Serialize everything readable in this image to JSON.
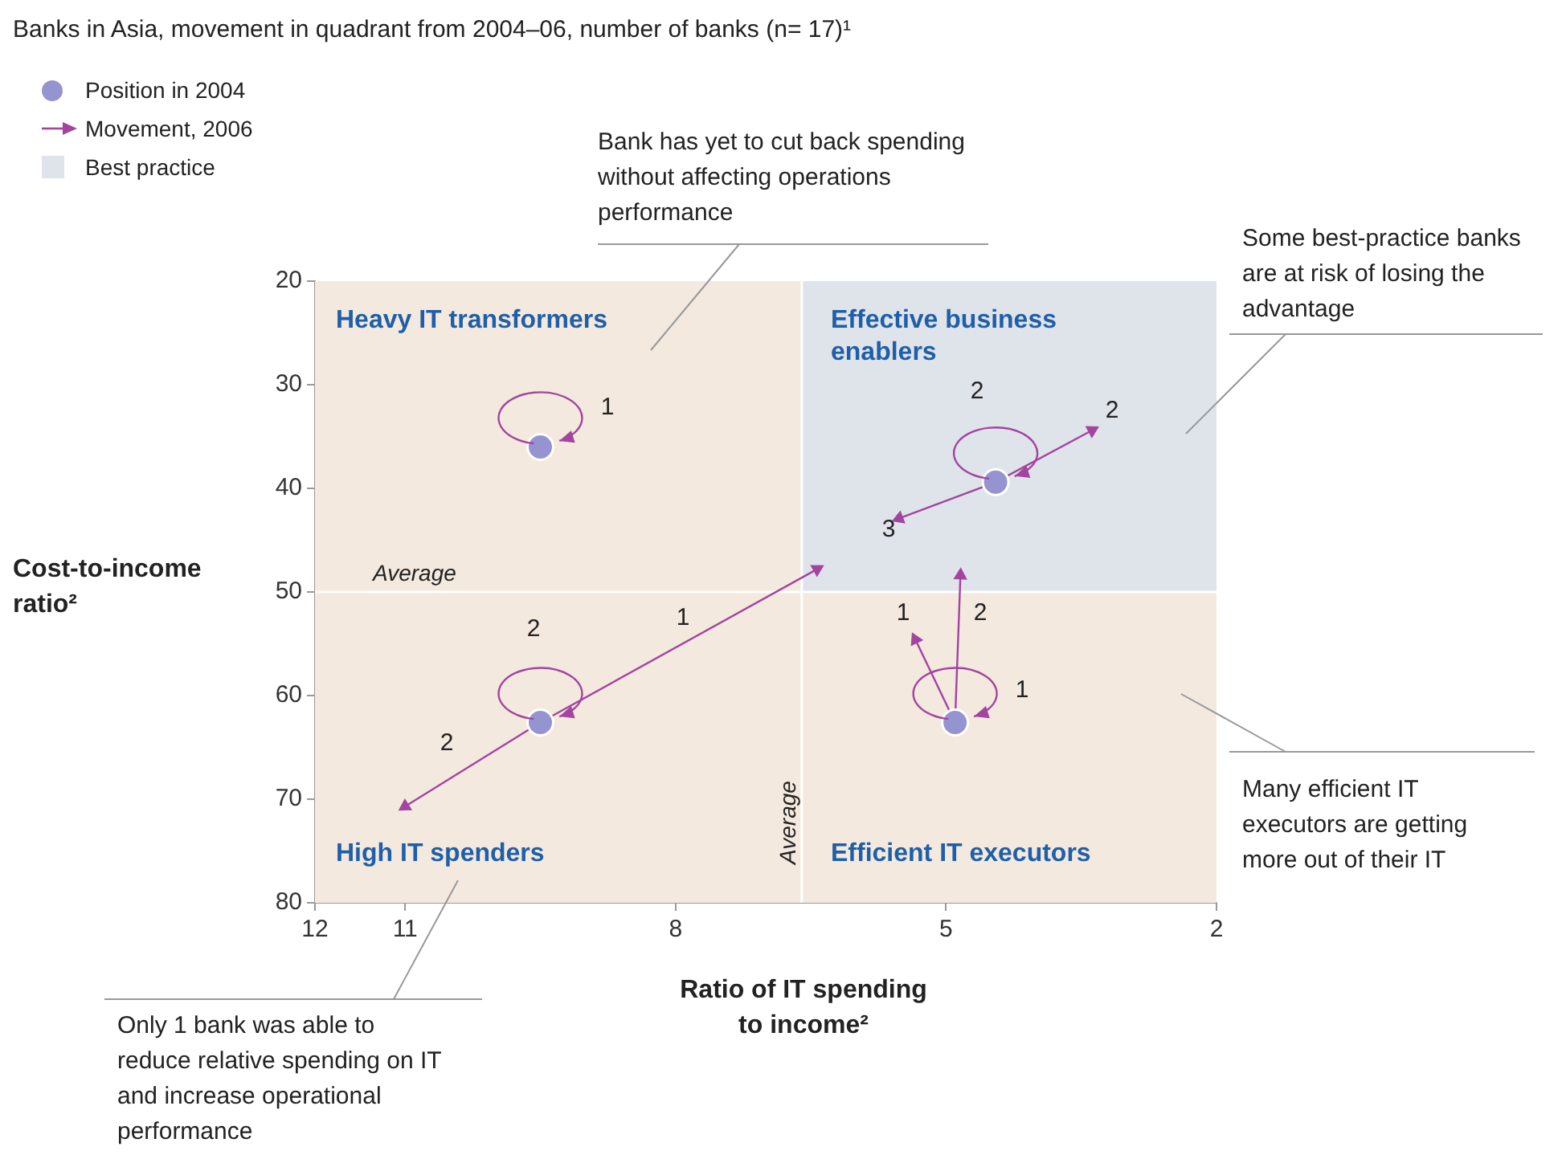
{
  "chart_data": {
    "type": "scatter",
    "title": "Banks in Asia, movement in quadrant from 2004–06, number of banks (n= 17)¹",
    "xlabel": "Ratio of IT spending to income²",
    "ylabel": "Cost-to-income ratio²",
    "xlim": [
      12,
      2
    ],
    "xticks": [
      12,
      11,
      8,
      5,
      2
    ],
    "ylim": [
      80,
      20
    ],
    "yticks": [
      20,
      30,
      40,
      50,
      60,
      70,
      80
    ],
    "grid": false,
    "legend": "top left",
    "series": [
      {
        "name": "Position in 2004",
        "type": "scatter",
        "marker": "circle",
        "color": "#9594d1",
        "x": [
          9.5,
          9.5,
          4.45,
          4.9
        ],
        "values": [
          36,
          62.6,
          39.4,
          62.6
        ]
      },
      {
        "name": "Movement, 2006",
        "type": "line",
        "marker": "triangle",
        "color": "#a3449f",
        "x": [
          9.5,
          6.43
        ],
        "values": [
          62.6,
          47.8
        ]
      },
      {
        "type": "line",
        "marker": "triangle",
        "color": "#a3449f",
        "x": [
          9.5,
          11
        ],
        "values": [
          62.6,
          70.7
        ]
      },
      {
        "type": "line",
        "marker": "triangle",
        "color": "#a3449f",
        "x": [
          4.45,
          3.38
        ],
        "values": [
          39.4,
          34.4
        ]
      },
      {
        "type": "line",
        "marker": "triangle",
        "color": "#a3449f",
        "x": [
          4.45,
          5.52
        ],
        "values": [
          39.4,
          42.9
        ]
      },
      {
        "type": "line",
        "marker": "triangle",
        "color": "#a3449f",
        "x": [
          4.9,
          4.84
        ],
        "values": [
          62.6,
          48.4
        ]
      },
      {
        "type": "line",
        "marker": "triangle",
        "color": "#a3449f",
        "x": [
          4.9,
          5.34
        ],
        "values": [
          62.6,
          54.6
        ]
      }
    ],
    "bands": [
      {
        "axis": "x",
        "from": 6.6,
        "to": 2,
        "label": "Best practice",
        "color": "#dfe3ea"
      }
    ],
    "ref_lines": [
      {
        "axis": "y",
        "value": 50,
        "label": "Average"
      },
      {
        "axis": "x",
        "value": 6.6,
        "label": "Average"
      }
    ],
    "annotations": [
      "Heavy IT transformers",
      "Effective business enablers",
      "High IT spenders",
      "Efficient IT executors",
      "Bank has yet to cut back spending without affecting operations performance",
      "Some best-practice banks are at risk of losing the advantage",
      "Many efficient IT executors are getting more out of their IT",
      "Only 1 bank was able to reduce relative spending on IT and increase operational performance",
      "1",
      "2",
      "1",
      "2",
      "2",
      "2",
      "3",
      "1",
      "2",
      "1"
    ]
  }
}
